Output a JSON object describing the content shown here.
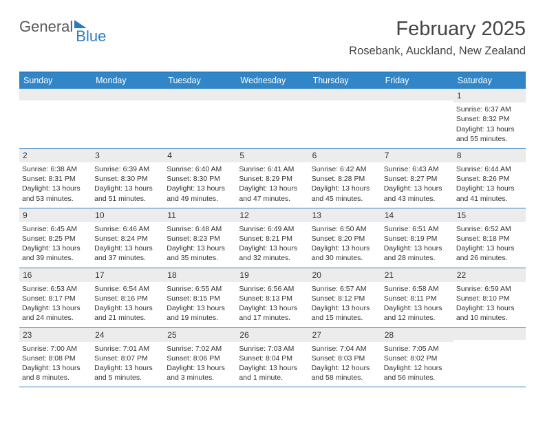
{
  "logo": {
    "part1": "General",
    "part2": "Blue"
  },
  "title": "February 2025",
  "location": "Rosebank, Auckland, New Zealand",
  "colors": {
    "accent": "#3186c8",
    "border": "#2b7bbf",
    "dayBar": "#ececec",
    "textMuted": "#5a5a5a",
    "text": "#333333",
    "background": "#ffffff"
  },
  "dayHeaders": [
    "Sunday",
    "Monday",
    "Tuesday",
    "Wednesday",
    "Thursday",
    "Friday",
    "Saturday"
  ],
  "weeks": [
    [
      null,
      null,
      null,
      null,
      null,
      null,
      {
        "n": "1",
        "sunrise": "Sunrise: 6:37 AM",
        "sunset": "Sunset: 8:32 PM",
        "daylight": "Daylight: 13 hours and 55 minutes."
      }
    ],
    [
      {
        "n": "2",
        "sunrise": "Sunrise: 6:38 AM",
        "sunset": "Sunset: 8:31 PM",
        "daylight": "Daylight: 13 hours and 53 minutes."
      },
      {
        "n": "3",
        "sunrise": "Sunrise: 6:39 AM",
        "sunset": "Sunset: 8:30 PM",
        "daylight": "Daylight: 13 hours and 51 minutes."
      },
      {
        "n": "4",
        "sunrise": "Sunrise: 6:40 AM",
        "sunset": "Sunset: 8:30 PM",
        "daylight": "Daylight: 13 hours and 49 minutes."
      },
      {
        "n": "5",
        "sunrise": "Sunrise: 6:41 AM",
        "sunset": "Sunset: 8:29 PM",
        "daylight": "Daylight: 13 hours and 47 minutes."
      },
      {
        "n": "6",
        "sunrise": "Sunrise: 6:42 AM",
        "sunset": "Sunset: 8:28 PM",
        "daylight": "Daylight: 13 hours and 45 minutes."
      },
      {
        "n": "7",
        "sunrise": "Sunrise: 6:43 AM",
        "sunset": "Sunset: 8:27 PM",
        "daylight": "Daylight: 13 hours and 43 minutes."
      },
      {
        "n": "8",
        "sunrise": "Sunrise: 6:44 AM",
        "sunset": "Sunset: 8:26 PM",
        "daylight": "Daylight: 13 hours and 41 minutes."
      }
    ],
    [
      {
        "n": "9",
        "sunrise": "Sunrise: 6:45 AM",
        "sunset": "Sunset: 8:25 PM",
        "daylight": "Daylight: 13 hours and 39 minutes."
      },
      {
        "n": "10",
        "sunrise": "Sunrise: 6:46 AM",
        "sunset": "Sunset: 8:24 PM",
        "daylight": "Daylight: 13 hours and 37 minutes."
      },
      {
        "n": "11",
        "sunrise": "Sunrise: 6:48 AM",
        "sunset": "Sunset: 8:23 PM",
        "daylight": "Daylight: 13 hours and 35 minutes."
      },
      {
        "n": "12",
        "sunrise": "Sunrise: 6:49 AM",
        "sunset": "Sunset: 8:21 PM",
        "daylight": "Daylight: 13 hours and 32 minutes."
      },
      {
        "n": "13",
        "sunrise": "Sunrise: 6:50 AM",
        "sunset": "Sunset: 8:20 PM",
        "daylight": "Daylight: 13 hours and 30 minutes."
      },
      {
        "n": "14",
        "sunrise": "Sunrise: 6:51 AM",
        "sunset": "Sunset: 8:19 PM",
        "daylight": "Daylight: 13 hours and 28 minutes."
      },
      {
        "n": "15",
        "sunrise": "Sunrise: 6:52 AM",
        "sunset": "Sunset: 8:18 PM",
        "daylight": "Daylight: 13 hours and 26 minutes."
      }
    ],
    [
      {
        "n": "16",
        "sunrise": "Sunrise: 6:53 AM",
        "sunset": "Sunset: 8:17 PM",
        "daylight": "Daylight: 13 hours and 24 minutes."
      },
      {
        "n": "17",
        "sunrise": "Sunrise: 6:54 AM",
        "sunset": "Sunset: 8:16 PM",
        "daylight": "Daylight: 13 hours and 21 minutes."
      },
      {
        "n": "18",
        "sunrise": "Sunrise: 6:55 AM",
        "sunset": "Sunset: 8:15 PM",
        "daylight": "Daylight: 13 hours and 19 minutes."
      },
      {
        "n": "19",
        "sunrise": "Sunrise: 6:56 AM",
        "sunset": "Sunset: 8:13 PM",
        "daylight": "Daylight: 13 hours and 17 minutes."
      },
      {
        "n": "20",
        "sunrise": "Sunrise: 6:57 AM",
        "sunset": "Sunset: 8:12 PM",
        "daylight": "Daylight: 13 hours and 15 minutes."
      },
      {
        "n": "21",
        "sunrise": "Sunrise: 6:58 AM",
        "sunset": "Sunset: 8:11 PM",
        "daylight": "Daylight: 13 hours and 12 minutes."
      },
      {
        "n": "22",
        "sunrise": "Sunrise: 6:59 AM",
        "sunset": "Sunset: 8:10 PM",
        "daylight": "Daylight: 13 hours and 10 minutes."
      }
    ],
    [
      {
        "n": "23",
        "sunrise": "Sunrise: 7:00 AM",
        "sunset": "Sunset: 8:08 PM",
        "daylight": "Daylight: 13 hours and 8 minutes."
      },
      {
        "n": "24",
        "sunrise": "Sunrise: 7:01 AM",
        "sunset": "Sunset: 8:07 PM",
        "daylight": "Daylight: 13 hours and 5 minutes."
      },
      {
        "n": "25",
        "sunrise": "Sunrise: 7:02 AM",
        "sunset": "Sunset: 8:06 PM",
        "daylight": "Daylight: 13 hours and 3 minutes."
      },
      {
        "n": "26",
        "sunrise": "Sunrise: 7:03 AM",
        "sunset": "Sunset: 8:04 PM",
        "daylight": "Daylight: 13 hours and 1 minute."
      },
      {
        "n": "27",
        "sunrise": "Sunrise: 7:04 AM",
        "sunset": "Sunset: 8:03 PM",
        "daylight": "Daylight: 12 hours and 58 minutes."
      },
      {
        "n": "28",
        "sunrise": "Sunrise: 7:05 AM",
        "sunset": "Sunset: 8:02 PM",
        "daylight": "Daylight: 12 hours and 56 minutes."
      },
      null
    ]
  ]
}
